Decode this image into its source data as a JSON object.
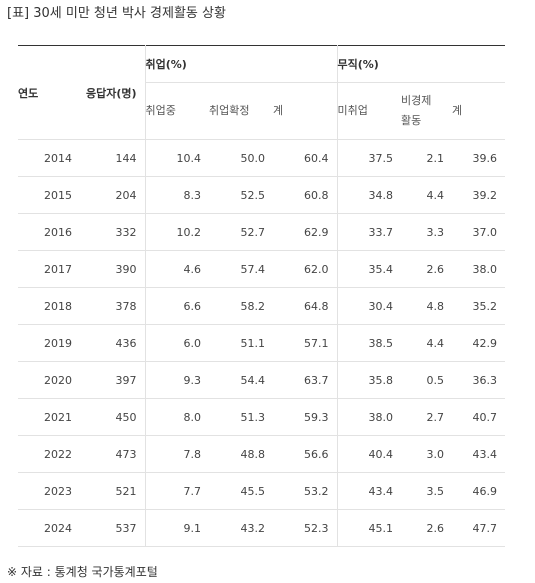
{
  "title": "[표] 30세 미만 청년 박사 경제활동 상황",
  "headers": {
    "year": "연도",
    "respondents": "응답자(명)",
    "employed_group": "취업(%)",
    "unemployed_group": "무직(%)",
    "employed_cols": [
      "취업중",
      "취업확정",
      "계"
    ],
    "unemployed_cols": [
      "미취업",
      "비경제\n활동",
      "계"
    ]
  },
  "rows": [
    [
      "2014",
      "144",
      "10.4",
      "50.0",
      "60.4",
      "37.5",
      "2.1",
      "39.6"
    ],
    [
      "2015",
      "204",
      "8.3",
      "52.5",
      "60.8",
      "34.8",
      "4.4",
      "39.2"
    ],
    [
      "2016",
      "332",
      "10.2",
      "52.7",
      "62.9",
      "33.7",
      "3.3",
      "37.0"
    ],
    [
      "2017",
      "390",
      "4.6",
      "57.4",
      "62.0",
      "35.4",
      "2.6",
      "38.0"
    ],
    [
      "2018",
      "378",
      "6.6",
      "58.2",
      "64.8",
      "30.4",
      "4.8",
      "35.2"
    ],
    [
      "2019",
      "436",
      "6.0",
      "51.1",
      "57.1",
      "38.5",
      "4.4",
      "42.9"
    ],
    [
      "2020",
      "397",
      "9.3",
      "54.4",
      "63.7",
      "35.8",
      "0.5",
      "36.3"
    ],
    [
      "2021",
      "450",
      "8.0",
      "51.3",
      "59.3",
      "38.0",
      "2.7",
      "40.7"
    ],
    [
      "2022",
      "473",
      "7.8",
      "48.8",
      "56.6",
      "40.4",
      "3.0",
      "43.4"
    ],
    [
      "2023",
      "521",
      "7.7",
      "45.5",
      "53.2",
      "43.4",
      "3.5",
      "46.9"
    ],
    [
      "2024",
      "537",
      "9.1",
      "43.2",
      "52.3",
      "45.1",
      "2.6",
      "47.7"
    ]
  ],
  "source": "※ 자료 : 통계청 국가통계포털"
}
